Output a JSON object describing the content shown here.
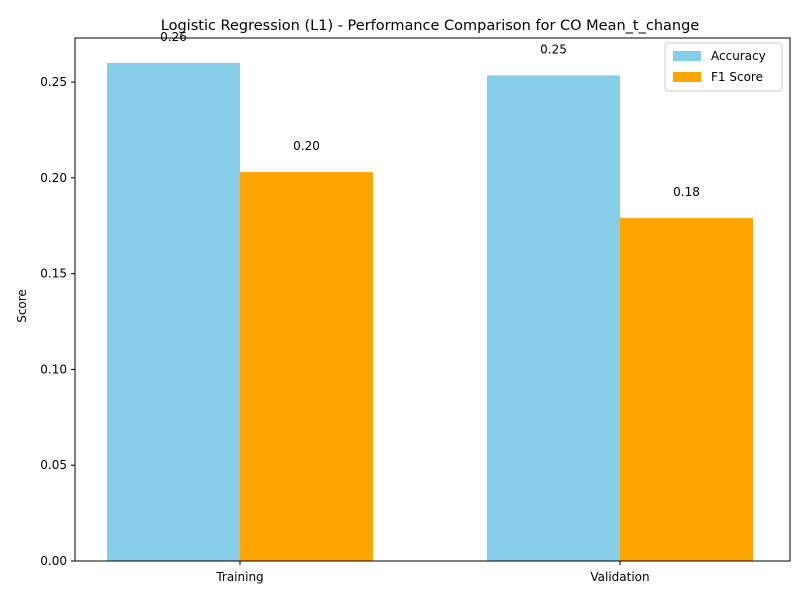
{
  "chart_data": {
    "type": "bar",
    "title": "Logistic Regression (L1) - Performance Comparison for CO Mean_t_change",
    "xlabel": "",
    "ylabel": "Score",
    "categories": [
      "Training",
      "Validation"
    ],
    "series": [
      {
        "name": "Accuracy",
        "values": [
          0.26,
          0.2535
        ],
        "labels": [
          "0.26",
          "0.25"
        ],
        "color": "#87ceeb"
      },
      {
        "name": "F1 Score",
        "values": [
          0.203,
          0.179
        ],
        "labels": [
          "0.20",
          "0.18"
        ],
        "color": "#ffa500"
      }
    ],
    "ylim": [
      0,
      0.273
    ],
    "yticks": [
      0.0,
      0.05,
      0.1,
      0.15,
      0.2,
      0.25
    ],
    "ytick_labels": [
      "0.00",
      "0.05",
      "0.10",
      "0.15",
      "0.20",
      "0.25"
    ],
    "grid": false,
    "legend_position": "top-right"
  }
}
